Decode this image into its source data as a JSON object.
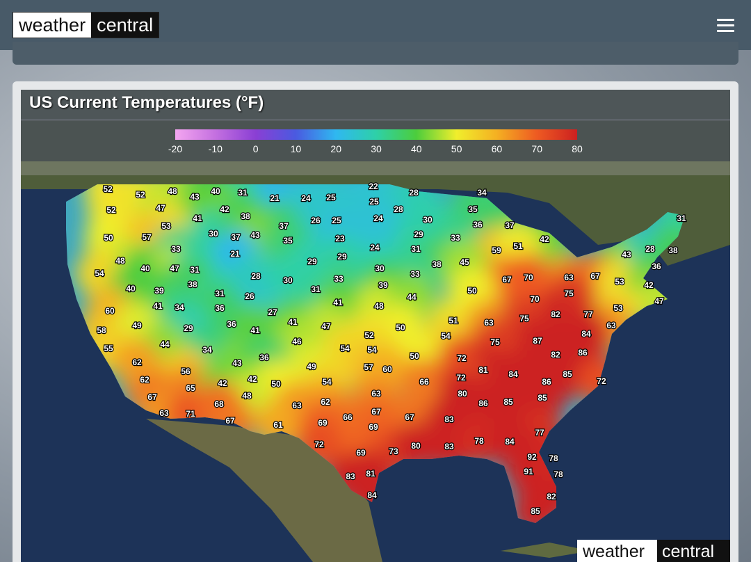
{
  "header": {
    "logo": [
      "weather",
      "central"
    ]
  },
  "panel": {
    "title": "US Current Temperatures (°F)"
  },
  "legend": {
    "ticks": [
      -20,
      -10,
      0,
      10,
      20,
      30,
      40,
      50,
      60,
      70,
      80
    ],
    "colors": [
      "#f4a6f0",
      "#c470e0",
      "#8a3fd4",
      "#4a5ae0",
      "#2fb8f0",
      "#2ed0a8",
      "#4ccd3c",
      "#f0ee2c",
      "#f4b022",
      "#ee5a22",
      "#cc2020"
    ]
  },
  "map": {
    "temperatures": [
      52,
      52,
      48,
      43,
      40,
      31,
      21,
      24,
      25,
      22,
      28,
      34,
      31,
      52,
      47,
      41,
      42,
      38,
      25,
      28,
      35,
      53,
      37,
      26,
      25,
      24,
      30,
      36,
      37,
      50,
      57,
      30,
      37,
      43,
      35,
      23,
      29,
      33,
      42,
      33,
      21,
      24,
      31,
      59,
      51,
      43,
      28,
      38,
      48,
      29,
      29,
      38,
      45,
      54,
      40,
      47,
      31,
      28,
      30,
      33,
      30,
      33,
      67,
      70,
      63,
      67,
      53,
      36,
      40,
      39,
      38,
      31,
      26,
      31,
      39,
      50,
      75,
      42,
      60,
      41,
      34,
      36,
      27,
      41,
      48,
      44,
      70,
      47,
      82,
      77,
      53,
      58,
      49,
      29,
      36,
      41,
      41,
      47,
      50,
      51,
      63,
      75,
      63,
      52,
      46,
      54,
      87,
      84,
      55,
      44,
      34,
      54,
      54,
      75,
      86,
      62,
      43,
      36,
      50,
      72,
      82,
      56,
      49,
      57,
      60,
      81,
      84,
      85,
      62,
      65,
      42,
      42,
      50,
      54,
      66,
      72,
      86,
      72,
      67,
      48,
      63,
      80,
      86,
      85,
      85,
      63,
      71,
      68,
      67,
      63,
      62,
      67,
      66,
      67,
      83,
      61,
      69,
      69,
      77,
      72,
      69,
      73,
      80,
      83,
      78,
      84,
      92,
      78,
      83,
      81,
      91,
      78,
      84,
      82,
      85
    ]
  },
  "watermark": [
    "weather",
    "central"
  ]
}
